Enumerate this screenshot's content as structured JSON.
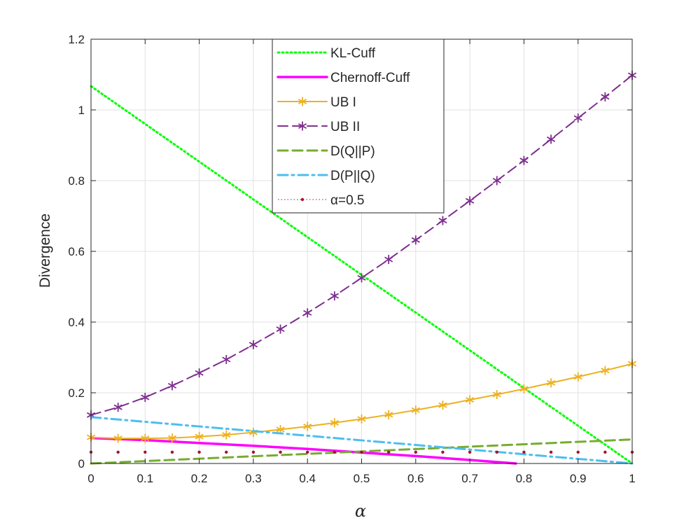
{
  "chart_data": {
    "type": "line",
    "title": "",
    "xlabel": "α",
    "ylabel": "Divergence",
    "xlim": [
      0,
      1
    ],
    "ylim": [
      0,
      1.2
    ],
    "grid": true,
    "legend_position": "top-center",
    "x_ticks": [
      0,
      0.1,
      0.2,
      0.3,
      0.4,
      0.5,
      0.6,
      0.7,
      0.8,
      0.9,
      1
    ],
    "x_tick_labels": [
      "0",
      "0.1",
      "0.2",
      "0.3",
      "0.4",
      "0.5",
      "0.6",
      "0.7",
      "0.8",
      "0.9",
      "1"
    ],
    "y_ticks": [
      0,
      0.2,
      0.4,
      0.6,
      0.8,
      1,
      1.2
    ],
    "y_tick_labels": [
      "0",
      "0.2",
      "0.4",
      "0.6",
      "0.8",
      "1",
      "1.2"
    ],
    "series": [
      {
        "name": "KL-Cuff",
        "color": "#00ff00",
        "style": "dotted",
        "marker": "none",
        "x": [
          0,
          1
        ],
        "y": [
          1.067,
          0.0
        ]
      },
      {
        "name": "Chernoff-Cuff",
        "color": "#ff00ff",
        "style": "solid",
        "marker": "none",
        "x": [
          0,
          0.1,
          0.2,
          0.3,
          0.4,
          0.5,
          0.6,
          0.7,
          0.785
        ],
        "y": [
          0.072,
          0.066,
          0.058,
          0.05,
          0.041,
          0.031,
          0.021,
          0.01,
          0.0
        ]
      },
      {
        "name": "UB I",
        "color": "#edb120",
        "style": "solid",
        "marker": "asterisk",
        "x": [
          0,
          0.05,
          0.1,
          0.15,
          0.2,
          0.25,
          0.3,
          0.35,
          0.4,
          0.45,
          0.5,
          0.55,
          0.6,
          0.65,
          0.7,
          0.75,
          0.8,
          0.85,
          0.9,
          0.95,
          1
        ],
        "y": [
          0.074,
          0.071,
          0.071,
          0.072,
          0.076,
          0.081,
          0.088,
          0.096,
          0.105,
          0.115,
          0.126,
          0.138,
          0.151,
          0.165,
          0.18,
          0.195,
          0.211,
          0.228,
          0.245,
          0.263,
          0.282
        ]
      },
      {
        "name": "UB II",
        "color": "#7e2f8e",
        "style": "dashed",
        "marker": "asterisk",
        "x": [
          0,
          0.05,
          0.1,
          0.15,
          0.2,
          0.25,
          0.3,
          0.35,
          0.4,
          0.45,
          0.5,
          0.55,
          0.6,
          0.65,
          0.7,
          0.75,
          0.8,
          0.85,
          0.9,
          0.95,
          1
        ],
        "y": [
          0.137,
          0.159,
          0.187,
          0.22,
          0.256,
          0.294,
          0.336,
          0.38,
          0.426,
          0.474,
          0.525,
          0.577,
          0.632,
          0.687,
          0.743,
          0.8,
          0.857,
          0.917,
          0.977,
          1.037,
          1.098
        ]
      },
      {
        "name": "D(Q||P)",
        "color": "#77ac30",
        "style": "dashed",
        "marker": "none",
        "x": [
          0,
          1
        ],
        "y": [
          0.0,
          0.068
        ]
      },
      {
        "name": "D(P||Q)",
        "color": "#4dbeee",
        "style": "dashdot",
        "marker": "none",
        "x": [
          0,
          1
        ],
        "y": [
          0.131,
          0.0
        ]
      },
      {
        "name": "α=0.5",
        "color": "#a2142f",
        "style": "dotted",
        "marker": "dot",
        "x": [
          0,
          0.05,
          0.1,
          0.15,
          0.2,
          0.25,
          0.3,
          0.35,
          0.4,
          0.45,
          0.5,
          0.55,
          0.6,
          0.65,
          0.7,
          0.75,
          0.8,
          0.85,
          0.9,
          0.95,
          1
        ],
        "y": [
          0.032,
          0.032,
          0.032,
          0.032,
          0.032,
          0.032,
          0.032,
          0.032,
          0.032,
          0.032,
          0.032,
          0.032,
          0.032,
          0.032,
          0.032,
          0.032,
          0.032,
          0.032,
          0.032,
          0.032,
          0.032
        ]
      }
    ]
  }
}
